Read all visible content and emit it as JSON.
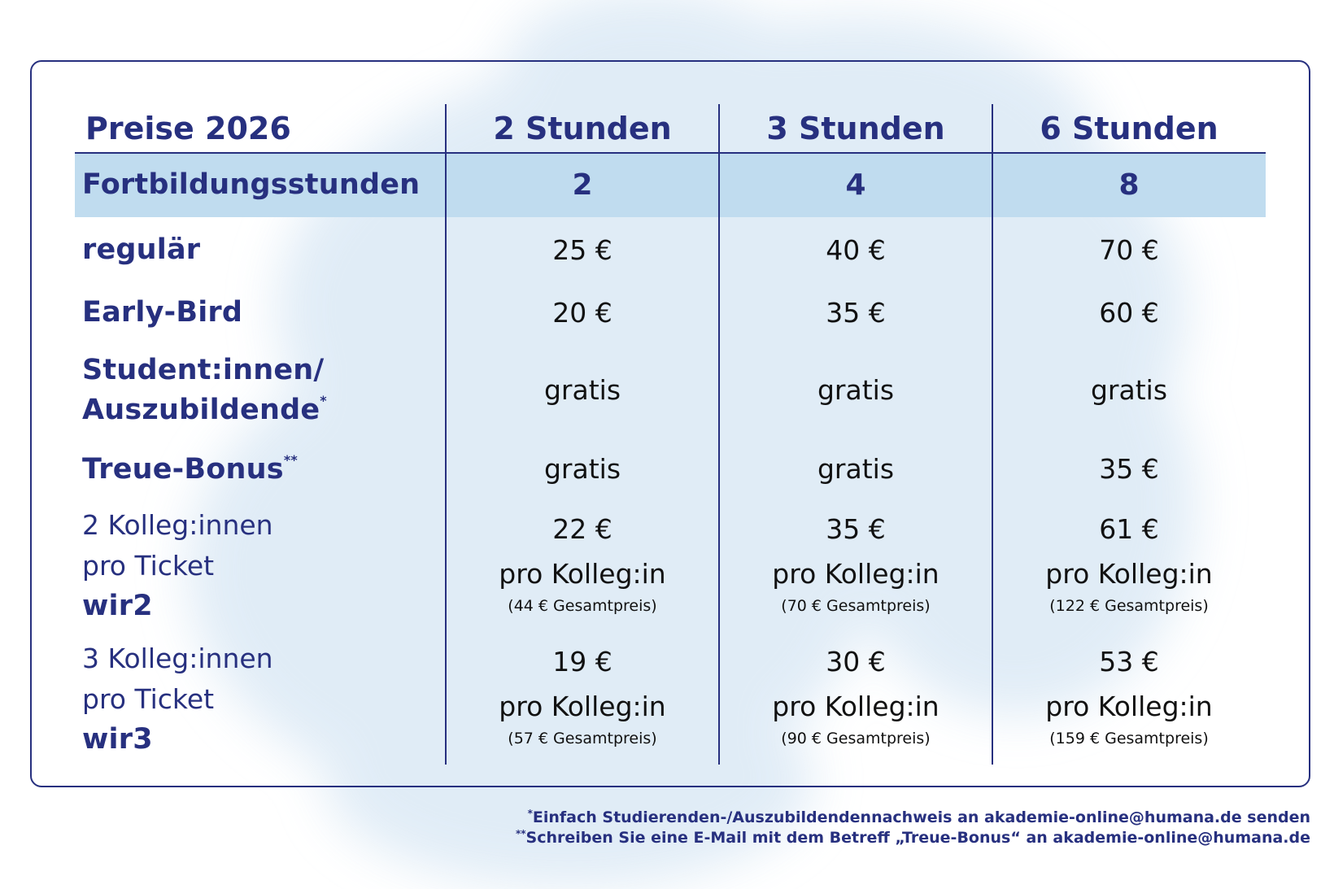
{
  "title": "Preise 2026",
  "columns": [
    "2 Stunden",
    "3 Stunden",
    "6 Stunden"
  ],
  "highlight_row": {
    "label": "Fortbildungsstunden",
    "values": [
      "2",
      "4",
      "8"
    ]
  },
  "rows": {
    "regular": {
      "label": "regulär",
      "values": [
        "25 €",
        "40 €",
        "70 €"
      ]
    },
    "early_bird": {
      "label": "Early-Bird",
      "values": [
        "20 €",
        "35 €",
        "60 €"
      ]
    },
    "students": {
      "label_line1": "Student:innen/",
      "label_line2": "Auszubildende",
      "mark": "*",
      "values": [
        "gratis",
        "gratis",
        "gratis"
      ]
    },
    "loyalty": {
      "label": "Treue-Bonus",
      "mark": "**",
      "values": [
        "gratis",
        "gratis",
        "35 €"
      ]
    },
    "wir2": {
      "label_line1": "2 Kolleg:innen",
      "label_line2": "pro Ticket",
      "code": "wir2",
      "values": [
        "22 €",
        "35 €",
        "61 €"
      ],
      "per": "pro Kolleg:in",
      "totals": [
        "(44 € Gesamtpreis)",
        "(70 € Gesamtpreis)",
        "(122 € Gesamtpreis)"
      ]
    },
    "wir3": {
      "label_line1": "3 Kolleg:innen",
      "label_line2": "pro Ticket",
      "code": "wir3",
      "values": [
        "19 €",
        "30 €",
        "53 €"
      ],
      "per": "pro Kolleg:in",
      "totals": [
        "(57 € Gesamtpreis)",
        "(90 € Gesamtpreis)",
        "(159 € Gesamtpreis)"
      ]
    }
  },
  "footnotes": {
    "one_mark": "*",
    "one": "Einfach Studierenden-/Auszubildendennachweis an akademie-online@humana.de senden",
    "two_mark": "**",
    "two": "Schreiben Sie eine E-Mail mit dem Betreff „Treue-Bonus“ an akademie-online@humana.de"
  },
  "colors": {
    "primary": "#27307f",
    "band": "#c0dcef",
    "watercolor": "#dbe9f5"
  }
}
